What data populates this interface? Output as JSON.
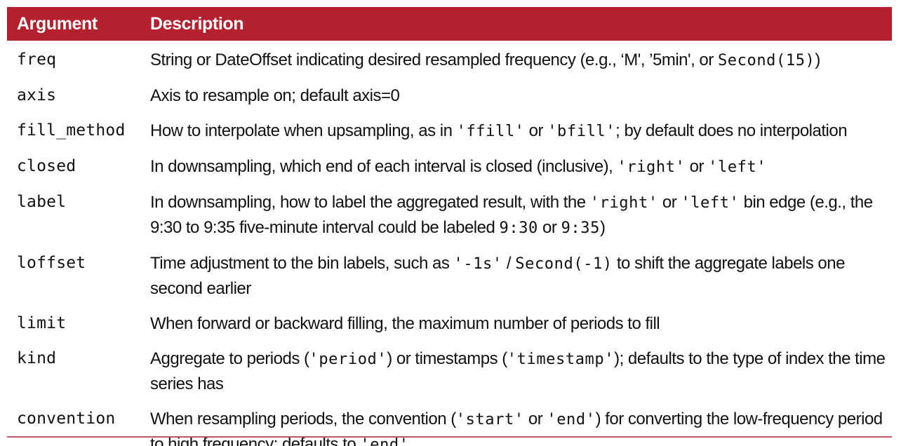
{
  "table": {
    "headers": {
      "argument": "Argument",
      "description": "Description"
    },
    "rows": [
      {
        "argument": "freq",
        "description": [
          {
            "t": "String or DateOffset indicating desired resampled frequency (e.g., ‘M', ’5min', or "
          },
          {
            "c": "Second(15)"
          },
          {
            "t": ")"
          }
        ]
      },
      {
        "argument": "axis",
        "description": [
          {
            "t": "Axis to resample on; default axis=0"
          }
        ]
      },
      {
        "argument": "fill_method",
        "description": [
          {
            "t": "How to interpolate when upsampling, as in "
          },
          {
            "c": "'ffill'"
          },
          {
            "t": " or "
          },
          {
            "c": "'bfill'"
          },
          {
            "t": "; by default does no interpolation"
          }
        ]
      },
      {
        "argument": "closed",
        "description": [
          {
            "t": "In downsampling, which end of each interval is closed (inclusive), "
          },
          {
            "c": "'right'"
          },
          {
            "t": " or "
          },
          {
            "c": "'left'"
          }
        ]
      },
      {
        "argument": "label",
        "description": [
          {
            "t": "In downsampling, how to label the aggregated result, with the "
          },
          {
            "c": "'right'"
          },
          {
            "t": " or "
          },
          {
            "c": "'left'"
          },
          {
            "t": " bin edge (e.g., the 9:30 to 9:35 five-minute interval could be labeled "
          },
          {
            "c": "9:30"
          },
          {
            "t": " or "
          },
          {
            "c": "9:35"
          },
          {
            "t": ")"
          }
        ]
      },
      {
        "argument": "loffset",
        "description": [
          {
            "t": "Time adjustment to the bin labels, such as "
          },
          {
            "c": "'-1s'"
          },
          {
            "t": " / "
          },
          {
            "c": "Second(-1)"
          },
          {
            "t": " to shift the aggregate labels one second earlier"
          }
        ]
      },
      {
        "argument": "limit",
        "description": [
          {
            "t": "When forward or backward filling, the maximum number of periods to fill"
          }
        ]
      },
      {
        "argument": "kind",
        "description": [
          {
            "t": "Aggregate to periods ("
          },
          {
            "c": "'period'"
          },
          {
            "t": ") or timestamps ("
          },
          {
            "c": "'timestamp'"
          },
          {
            "t": "); defaults to the type of index the time series has"
          }
        ]
      },
      {
        "argument": "convention",
        "description": [
          {
            "t": "When resampling periods, the convention ("
          },
          {
            "c": "'start'"
          },
          {
            "t": " or "
          },
          {
            "c": "'end'"
          },
          {
            "t": ") for converting the low-frequency period to high frequency; defaults to "
          },
          {
            "c": "'end'"
          }
        ]
      }
    ]
  },
  "colors": {
    "header_background": "#b5202f",
    "header_text": "#ffffff",
    "bottom_rule": "#c9546a"
  }
}
